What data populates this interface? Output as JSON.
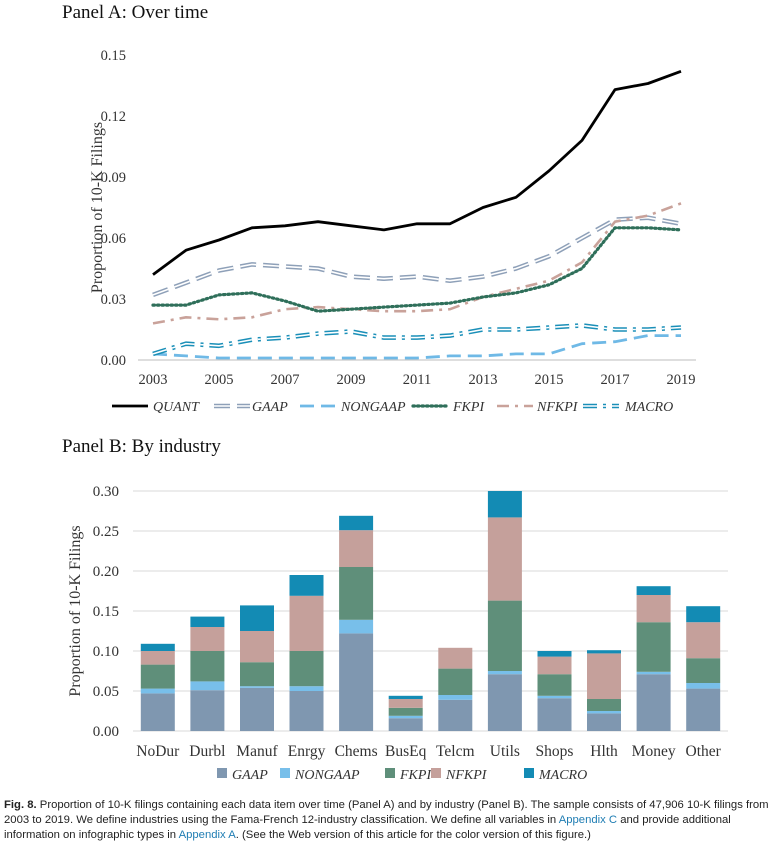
{
  "chart_data": [
    {
      "type": "line",
      "title": "Panel A: Over time",
      "ylabel": "Proportion of 10-K Filings",
      "xlabel": "",
      "xlim": [
        2003,
        2019
      ],
      "ylim": [
        0,
        0.15
      ],
      "yticks": [
        "0.00",
        "0.03",
        "0.06",
        "0.09",
        "0.12",
        "0.15"
      ],
      "xticks": [
        "2003",
        "2005",
        "2007",
        "2009",
        "2011",
        "2013",
        "2015",
        "2017",
        "2019"
      ],
      "x": [
        2003,
        2004,
        2005,
        2006,
        2007,
        2008,
        2009,
        2010,
        2011,
        2012,
        2013,
        2014,
        2015,
        2016,
        2017,
        2018,
        2019
      ],
      "legend_position": "bottom",
      "series": [
        {
          "name": "QUANT",
          "color": "#000000",
          "style": "solid",
          "values": [
            0.042,
            0.054,
            0.059,
            0.065,
            0.066,
            0.068,
            0.066,
            0.064,
            0.067,
            0.067,
            0.075,
            0.08,
            0.093,
            0.108,
            0.133,
            0.136,
            0.142
          ]
        },
        {
          "name": "GAAP",
          "color": "#8ea0b8",
          "style": "longdash-double",
          "values": [
            0.032,
            0.038,
            0.044,
            0.047,
            0.046,
            0.045,
            0.041,
            0.04,
            0.041,
            0.039,
            0.041,
            0.045,
            0.051,
            0.06,
            0.069,
            0.07,
            0.067
          ]
        },
        {
          "name": "NONGAAP",
          "color": "#6fb9e6",
          "style": "dash",
          "values": [
            0.003,
            0.002,
            0.001,
            0.001,
            0.001,
            0.001,
            0.001,
            0.001,
            0.001,
            0.002,
            0.002,
            0.003,
            0.003,
            0.008,
            0.009,
            0.012,
            0.012
          ]
        },
        {
          "name": "FKPI",
          "color": "#2f6f5a",
          "style": "dot",
          "values": [
            0.027,
            0.027,
            0.032,
            0.033,
            0.029,
            0.024,
            0.025,
            0.026,
            0.027,
            0.028,
            0.031,
            0.033,
            0.037,
            0.045,
            0.065,
            0.065,
            0.064
          ]
        },
        {
          "name": "NFKPI",
          "color": "#c9a29a",
          "style": "dashdot",
          "values": [
            0.018,
            0.021,
            0.02,
            0.021,
            0.025,
            0.026,
            0.025,
            0.024,
            0.024,
            0.025,
            0.031,
            0.035,
            0.039,
            0.048,
            0.068,
            0.071,
            0.077
          ]
        },
        {
          "name": "MACRO",
          "color": "#1a8fb8",
          "style": "dashdot-double",
          "values": [
            0.003,
            0.008,
            0.007,
            0.01,
            0.011,
            0.013,
            0.014,
            0.011,
            0.011,
            0.012,
            0.015,
            0.015,
            0.016,
            0.017,
            0.015,
            0.015,
            0.016
          ]
        }
      ]
    },
    {
      "type": "bar",
      "stacked": true,
      "title": "Panel B: By industry",
      "ylabel": "Proportion of 10-K Filings",
      "xlabel": "",
      "ylim": [
        0,
        0.3
      ],
      "yticks": [
        "0.00",
        "0.05",
        "0.10",
        "0.15",
        "0.20",
        "0.25",
        "0.30"
      ],
      "categories": [
        "NoDur",
        "Durbl",
        "Manuf",
        "Enrgy",
        "Chems",
        "BusEq",
        "Telcm",
        "Utils",
        "Shops",
        "Hlth",
        "Money",
        "Other"
      ],
      "legend_position": "bottom",
      "series": [
        {
          "name": "GAAP",
          "color": "#7f97b0",
          "values": [
            0.047,
            0.051,
            0.054,
            0.05,
            0.122,
            0.016,
            0.039,
            0.071,
            0.041,
            0.022,
            0.071,
            0.053
          ]
        },
        {
          "name": "NONGAAP",
          "color": "#78bfea",
          "values": [
            0.006,
            0.011,
            0.002,
            0.006,
            0.017,
            0.003,
            0.006,
            0.004,
            0.003,
            0.003,
            0.003,
            0.007
          ]
        },
        {
          "name": "FKPI",
          "color": "#5f8f7a",
          "values": [
            0.03,
            0.038,
            0.03,
            0.044,
            0.066,
            0.01,
            0.033,
            0.088,
            0.027,
            0.015,
            0.062,
            0.031
          ]
        },
        {
          "name": "NFKPI",
          "color": "#c5a09b",
          "values": [
            0.017,
            0.03,
            0.039,
            0.069,
            0.046,
            0.011,
            0.026,
            0.104,
            0.022,
            0.057,
            0.034,
            0.045
          ]
        },
        {
          "name": "MACRO",
          "color": "#138bb4",
          "values": [
            0.009,
            0.013,
            0.032,
            0.026,
            0.018,
            0.004,
            0.0,
            0.033,
            0.007,
            0.004,
            0.011,
            0.02
          ]
        }
      ]
    }
  ],
  "caption": {
    "fig_label": "Fig. 8.",
    "text_1": " Proportion of 10-K filings containing each data item over time (Panel A) and by industry (Panel B). The sample consists of 47,906 10-K filings from 2003 to 2019. We define industries using the Fama-French 12-industry classification. We define all variables in ",
    "link_1": "Appendix C",
    "text_2": " and provide additional information on infographic types in ",
    "link_2": "Appendix A",
    "text_3": ". (See the Web version of this article for the color version of this figure.)"
  }
}
